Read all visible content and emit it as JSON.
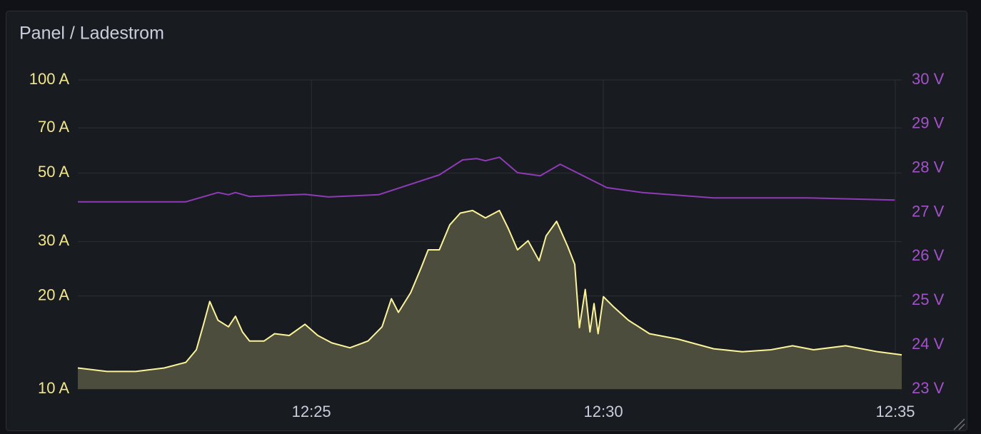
{
  "chart_data": {
    "type": "line",
    "title": "Panel / Ladestrom",
    "yscale": "log",
    "grid": true,
    "xlim": [
      21,
      35.11
    ],
    "xticks": [
      {
        "value": 25,
        "label": "12:25"
      },
      {
        "value": 30,
        "label": "12:30"
      },
      {
        "value": 35,
        "label": "12:35"
      }
    ],
    "ylim": [
      10,
      100
    ],
    "yticks": [
      {
        "value": 10,
        "label": "10 A"
      },
      {
        "value": 20,
        "label": "20 A"
      },
      {
        "value": 30,
        "label": "30 A"
      },
      {
        "value": 50,
        "label": "50 A"
      },
      {
        "value": 70,
        "label": "70 A"
      },
      {
        "value": 100,
        "label": "100 A"
      }
    ],
    "y2lim": [
      23,
      30
    ],
    "y2ticks": [
      {
        "value": 23,
        "label": "23 V"
      },
      {
        "value": 24,
        "label": "24 V"
      },
      {
        "value": 25,
        "label": "25 V"
      },
      {
        "value": 26,
        "label": "26 V"
      },
      {
        "value": 27,
        "label": "27 V"
      },
      {
        "value": 28,
        "label": "28 V"
      },
      {
        "value": 29,
        "label": "29 V"
      },
      {
        "value": 30,
        "label": "30 V"
      }
    ],
    "tick_color": "#f2e68b",
    "tick2_color": "#a352cc",
    "series": [
      {
        "color": "#fbf49a",
        "fill": "#4c4d3c",
        "x": [
          21.0,
          21.5,
          21.99,
          22.48,
          22.85,
          23.03,
          23.15,
          23.26,
          23.4,
          23.58,
          23.7,
          23.82,
          23.94,
          24.19,
          24.37,
          24.62,
          24.89,
          25.11,
          25.35,
          25.66,
          25.97,
          26.21,
          26.37,
          26.49,
          26.7,
          26.88,
          27.0,
          27.19,
          27.37,
          27.55,
          27.76,
          27.98,
          28.22,
          28.37,
          28.53,
          28.71,
          28.9,
          29.02,
          29.2,
          29.39,
          29.51,
          29.59,
          29.69,
          29.77,
          29.84,
          29.91,
          30.0,
          30.18,
          30.43,
          30.79,
          31.28,
          31.89,
          32.38,
          32.87,
          33.24,
          33.6,
          34.15,
          34.7,
          35.11
        ],
        "values": [
          11.7,
          11.4,
          11.4,
          11.7,
          12.2,
          13.4,
          16.1,
          19.2,
          16.7,
          15.9,
          17.2,
          15.3,
          14.3,
          14.3,
          15.1,
          14.9,
          16.2,
          14.9,
          14.1,
          13.6,
          14.3,
          15.9,
          19.6,
          17.7,
          20.5,
          24.7,
          28.2,
          28.2,
          34.0,
          37.1,
          37.8,
          35.8,
          37.8,
          33.1,
          28.2,
          30.2,
          26.0,
          31.3,
          34.9,
          28.9,
          25.3,
          15.8,
          21.0,
          15.3,
          18.9,
          15.1,
          19.9,
          18.4,
          16.7,
          15.1,
          14.5,
          13.5,
          13.2,
          13.4,
          13.8,
          13.4,
          13.8,
          13.2,
          12.9
        ]
      },
      {
        "color": "#8f3bb8",
        "axis": "y2",
        "x": [
          21.0,
          22.85,
          23.4,
          23.58,
          23.7,
          23.94,
          24.89,
          25.29,
          26.15,
          27.19,
          27.59,
          27.83,
          27.98,
          28.22,
          28.53,
          28.92,
          29.26,
          30.06,
          30.67,
          31.89,
          33.48,
          34.99
        ],
        "values": [
          27.24,
          27.24,
          27.45,
          27.4,
          27.45,
          27.36,
          27.41,
          27.35,
          27.4,
          27.85,
          28.19,
          28.22,
          28.17,
          28.25,
          27.9,
          27.83,
          28.09,
          27.56,
          27.45,
          27.33,
          27.33,
          27.28
        ]
      }
    ]
  }
}
